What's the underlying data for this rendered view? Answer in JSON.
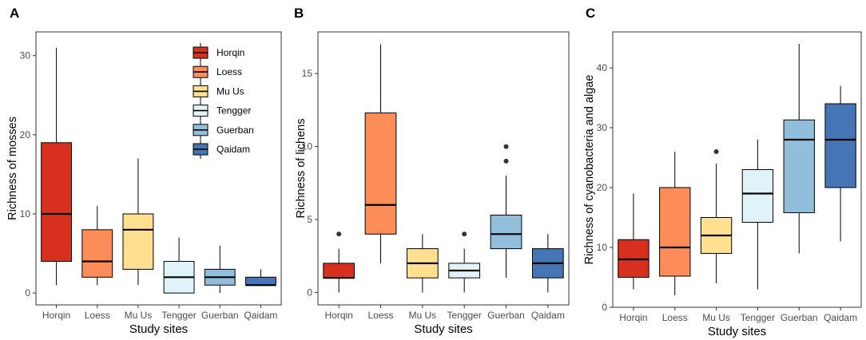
{
  "colors": {
    "Horqin": "#d7301f",
    "Loess": "#fc8d59",
    "Mu Us": "#fee090",
    "Tengger": "#e0f3f8",
    "Guerban": "#91bfdb",
    "Qaidam": "#4575b4"
  },
  "chart_data": [
    {
      "type": "box",
      "panel_label": "A",
      "xlabel": "Study sites",
      "ylabel": "Richness of mosses",
      "ylim": [
        -1.5,
        33
      ],
      "yticks": [
        0,
        10,
        20,
        30
      ],
      "categories": [
        "Horqin",
        "Loess",
        "Mu Us",
        "Tengger",
        "Guerban",
        "Qaidam"
      ],
      "boxes": [
        {
          "min": 1,
          "q1": 4,
          "median": 10,
          "q3": 19,
          "max": 31,
          "outliers": []
        },
        {
          "min": 1,
          "q1": 2,
          "median": 4,
          "q3": 8,
          "max": 11,
          "outliers": []
        },
        {
          "min": 1,
          "q1": 3,
          "median": 8,
          "q3": 10,
          "max": 17,
          "outliers": []
        },
        {
          "min": 0,
          "q1": 0,
          "median": 2,
          "q3": 4,
          "max": 7,
          "outliers": []
        },
        {
          "min": 0,
          "q1": 1,
          "median": 2,
          "q3": 3,
          "max": 6,
          "outliers": []
        },
        {
          "min": 1,
          "q1": 1,
          "median": 1,
          "q3": 2,
          "max": 3,
          "outliers": []
        }
      ],
      "legend": {
        "position": "top-right",
        "entries": [
          "Horqin",
          "Loess",
          "Mu Us",
          "Tengger",
          "Guerban",
          "Qaidam"
        ]
      }
    },
    {
      "type": "box",
      "panel_label": "B",
      "xlabel": "Study sites",
      "ylabel": "Richness of lichens",
      "ylim": [
        -0.85,
        17.85
      ],
      "yticks": [
        0,
        5,
        10,
        15
      ],
      "categories": [
        "Horqin",
        "Loess",
        "Mu Us",
        "Tengger",
        "Guerban",
        "Qaidam"
      ],
      "boxes": [
        {
          "min": 0,
          "q1": 1,
          "median": 1,
          "q3": 2,
          "max": 3,
          "outliers": [
            4
          ]
        },
        {
          "min": 2,
          "q1": 4,
          "median": 6,
          "q3": 12.3,
          "max": 17,
          "outliers": []
        },
        {
          "min": 0,
          "q1": 1,
          "median": 2,
          "q3": 3,
          "max": 4,
          "outliers": []
        },
        {
          "min": 0,
          "q1": 1,
          "median": 1.5,
          "q3": 2,
          "max": 3,
          "outliers": [
            4
          ]
        },
        {
          "min": 1,
          "q1": 3,
          "median": 4,
          "q3": 5.3,
          "max": 8,
          "outliers": [
            9,
            10
          ]
        },
        {
          "min": 0,
          "q1": 1,
          "median": 2,
          "q3": 3,
          "max": 4,
          "outliers": []
        }
      ]
    },
    {
      "type": "box",
      "panel_label": "C",
      "xlabel": "Study sites",
      "ylabel": "Richness of cyanobacteria and algae",
      "ylim": [
        0,
        46
      ],
      "yticks": [
        0,
        10,
        20,
        30,
        40
      ],
      "categories": [
        "Horqin",
        "Loess",
        "Mu Us",
        "Tengger",
        "Guerban",
        "Qaidam"
      ],
      "boxes": [
        {
          "min": 3,
          "q1": 5,
          "median": 8,
          "q3": 11.3,
          "max": 19,
          "outliers": []
        },
        {
          "min": 2,
          "q1": 5.2,
          "median": 10,
          "q3": 20,
          "max": 26,
          "outliers": []
        },
        {
          "min": 4,
          "q1": 9,
          "median": 12,
          "q3": 15,
          "max": 24,
          "outliers": [
            26
          ]
        },
        {
          "min": 3,
          "q1": 14.2,
          "median": 19,
          "q3": 23,
          "max": 28,
          "outliers": []
        },
        {
          "min": 9,
          "q1": 15.8,
          "median": 28,
          "q3": 31.3,
          "max": 44,
          "outliers": []
        },
        {
          "min": 11,
          "q1": 20,
          "median": 28,
          "q3": 34,
          "max": 37,
          "outliers": []
        }
      ]
    }
  ]
}
